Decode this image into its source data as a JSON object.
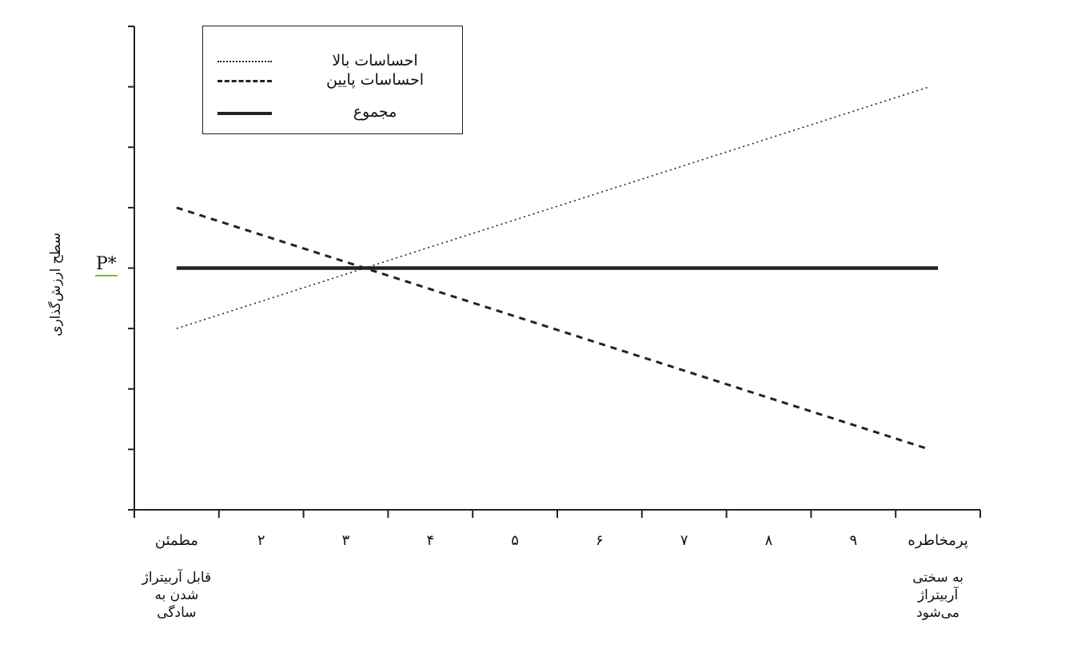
{
  "chart_data": {
    "type": "line",
    "title": "",
    "ylabel": "سطح ارزش‌گذاری",
    "xlabel": "",
    "y_marker_label": "P*",
    "y_marker_value": 0,
    "ylim": [
      -4,
      4
    ],
    "xlim": [
      0,
      10
    ],
    "y_tick_count": 9,
    "x_ticks": [
      {
        "x": 0,
        "label": ""
      },
      {
        "x": 1,
        "label": ""
      },
      {
        "x": 2,
        "label": ""
      },
      {
        "x": 3,
        "label": ""
      },
      {
        "x": 4,
        "label": ""
      },
      {
        "x": 5,
        "label": ""
      },
      {
        "x": 6,
        "label": ""
      },
      {
        "x": 7,
        "label": ""
      },
      {
        "x": 8,
        "label": ""
      },
      {
        "x": 9,
        "label": ""
      },
      {
        "x": 10,
        "label": ""
      }
    ],
    "category_labels": [
      {
        "x": 0.5,
        "label": "مطمئن"
      },
      {
        "x": 1.5,
        "label": "۲"
      },
      {
        "x": 2.5,
        "label": "۳"
      },
      {
        "x": 3.5,
        "label": "۴"
      },
      {
        "x": 4.5,
        "label": "۵"
      },
      {
        "x": 5.5,
        "label": "۶"
      },
      {
        "x": 6.5,
        "label": "۷"
      },
      {
        "x": 7.5,
        "label": "۸"
      },
      {
        "x": 8.5,
        "label": "۹"
      },
      {
        "x": 9.5,
        "label": "پرمخاطره"
      }
    ],
    "end_notes": {
      "left": {
        "x": 0.5,
        "lines": [
          "قابل آربیتراژ",
          "شدن به",
          "سادگی"
        ]
      },
      "right": {
        "x": 9.5,
        "lines": [
          "به سختی",
          "آربیتراژ",
          "می‌شود"
        ]
      }
    },
    "series": [
      {
        "name": "احساسات بالا",
        "style": "dotted",
        "x": [
          0.5,
          9.4
        ],
        "y": [
          -1,
          3
        ]
      },
      {
        "name": "احساسات پایین",
        "style": "dashed",
        "x": [
          0.5,
          9.4
        ],
        "y": [
          1,
          -3
        ]
      },
      {
        "name": "مجموع",
        "style": "solid",
        "x": [
          0.5,
          9.5
        ],
        "y": [
          0,
          0
        ]
      }
    ],
    "legend_position": "top-left",
    "grid": false
  },
  "colors": {
    "line": "#222222",
    "marker_underline": "#6cc24a"
  }
}
